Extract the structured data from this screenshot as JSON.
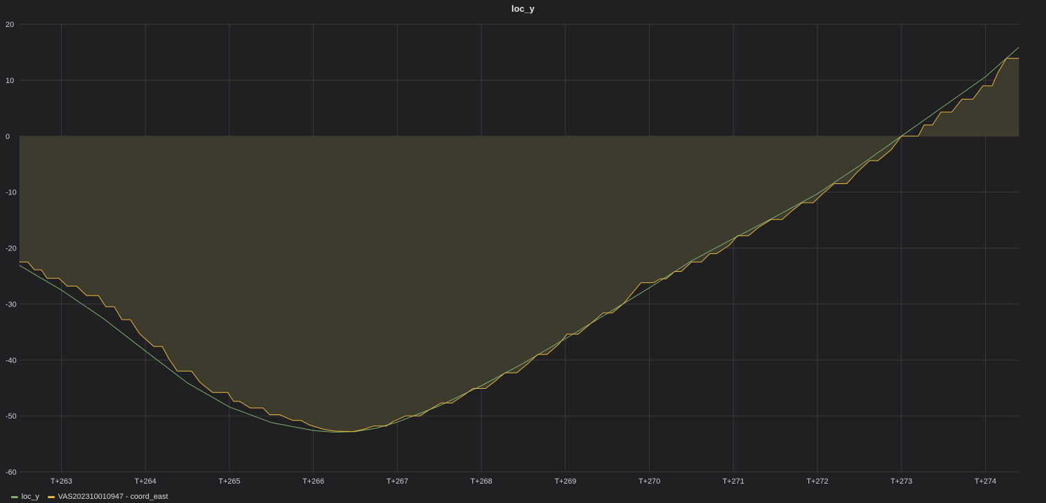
{
  "panel": {
    "title": "loc_y"
  },
  "colors": {
    "background": "#202023",
    "grid": "#3a3a3d",
    "series_loc_y": "#7eb26d",
    "series_coord_east": "#eab839",
    "fill": "#3c3b2e"
  },
  "chart_data": {
    "type": "line",
    "title": "loc_y",
    "xlabel": "",
    "ylabel": "",
    "xlim": [
      262.5,
      274.4
    ],
    "ylim": [
      -60,
      20
    ],
    "x_ticks": [
      263,
      264,
      265,
      266,
      267,
      268,
      269,
      270,
      271,
      272,
      273,
      274
    ],
    "x_tick_labels": [
      "T+263",
      "T+264",
      "T+265",
      "T+266",
      "T+267",
      "T+268",
      "T+269",
      "T+270",
      "T+271",
      "T+272",
      "T+273",
      "T+274"
    ],
    "y_ticks": [
      20,
      10,
      0,
      -10,
      -20,
      -30,
      -40,
      -50,
      -60
    ],
    "y_tick_labels": [
      "20",
      "10",
      "0",
      "-10",
      "-20",
      "-30",
      "-40",
      "-50",
      "-60"
    ],
    "grid": true,
    "legend_position": "bottom-left",
    "series": [
      {
        "name": "loc_y",
        "color": "#7eb26d",
        "style": "line",
        "x": [
          262.5,
          263.0,
          263.5,
          264.0,
          264.5,
          265.0,
          265.5,
          266.0,
          266.25,
          266.5,
          266.75,
          267.0,
          267.5,
          268.0,
          268.5,
          269.0,
          269.5,
          270.0,
          270.5,
          271.0,
          271.5,
          272.0,
          272.5,
          273.0,
          273.5,
          274.0,
          274.4
        ],
        "y": [
          -23.1,
          -27.5,
          -32.6,
          -38.4,
          -44.1,
          -48.4,
          -51.2,
          -52.6,
          -52.9,
          -52.8,
          -52.2,
          -51.1,
          -48.2,
          -44.6,
          -40.6,
          -36.2,
          -31.7,
          -27.1,
          -22.3,
          -18.3,
          -14.4,
          -10.3,
          -5.3,
          0.0,
          5.3,
          10.6,
          15.9
        ]
      },
      {
        "name": "VAS202310010947 - coord_east",
        "color": "#eab839",
        "style": "step-area",
        "x": [
          262.5,
          262.6,
          262.68,
          262.76,
          262.83,
          262.97,
          263.07,
          263.18,
          263.3,
          263.44,
          263.53,
          263.63,
          263.72,
          263.82,
          263.93,
          264.1,
          264.2,
          264.28,
          264.38,
          264.55,
          264.65,
          264.8,
          264.98,
          265.05,
          265.12,
          265.25,
          265.4,
          265.48,
          265.6,
          265.75,
          265.85,
          265.95,
          266.12,
          266.25,
          266.47,
          266.6,
          266.72,
          266.87,
          266.95,
          267.1,
          267.27,
          267.38,
          267.52,
          267.65,
          267.78,
          267.9,
          268.05,
          268.17,
          268.28,
          268.42,
          268.55,
          268.67,
          268.78,
          268.92,
          269.02,
          269.15,
          269.3,
          269.45,
          269.56,
          269.7,
          269.8,
          269.9,
          270.05,
          270.13,
          270.2,
          270.3,
          270.38,
          270.5,
          270.62,
          270.72,
          270.8,
          270.95,
          271.05,
          271.18,
          271.3,
          271.45,
          271.58,
          271.7,
          271.82,
          271.95,
          272.07,
          272.2,
          272.35,
          272.47,
          272.62,
          272.72,
          272.88,
          273.0,
          273.07,
          273.2,
          273.27,
          273.37,
          273.47,
          273.6,
          273.72,
          273.85,
          273.97,
          274.08,
          274.15,
          274.25,
          274.4
        ],
        "y": [
          -22.5,
          -22.5,
          -23.9,
          -23.9,
          -25.4,
          -25.4,
          -26.8,
          -26.8,
          -28.5,
          -28.5,
          -30.5,
          -30.5,
          -32.8,
          -32.8,
          -35.3,
          -37.6,
          -37.6,
          -39.8,
          -42.0,
          -42.0,
          -44.0,
          -45.8,
          -45.8,
          -47.4,
          -47.4,
          -48.6,
          -48.6,
          -49.8,
          -49.8,
          -50.8,
          -50.8,
          -51.6,
          -52.4,
          -52.7,
          -52.8,
          -52.4,
          -51.8,
          -51.8,
          -51.0,
          -50.0,
          -50.0,
          -48.9,
          -47.7,
          -47.7,
          -46.4,
          -45.1,
          -45.1,
          -43.7,
          -42.3,
          -42.3,
          -40.7,
          -39.0,
          -39.0,
          -37.2,
          -35.4,
          -35.4,
          -33.5,
          -31.6,
          -31.6,
          -29.8,
          -28.0,
          -26.2,
          -26.2,
          -25.5,
          -25.5,
          -24.2,
          -24.2,
          -22.5,
          -22.5,
          -21.0,
          -21.0,
          -19.5,
          -17.8,
          -17.8,
          -16.3,
          -14.9,
          -14.9,
          -13.3,
          -11.9,
          -11.9,
          -10.2,
          -8.5,
          -8.5,
          -6.5,
          -4.4,
          -4.4,
          -2.4,
          0.0,
          0.0,
          0.0,
          2.0,
          2.0,
          4.3,
          4.3,
          6.6,
          6.6,
          9.0,
          9.0,
          11.4,
          13.9,
          13.9
        ]
      }
    ]
  },
  "legend": {
    "items": [
      {
        "label": "loc_y",
        "color": "#7eb26d"
      },
      {
        "label": "VAS202310010947 - coord_east",
        "color": "#eab839"
      }
    ]
  }
}
